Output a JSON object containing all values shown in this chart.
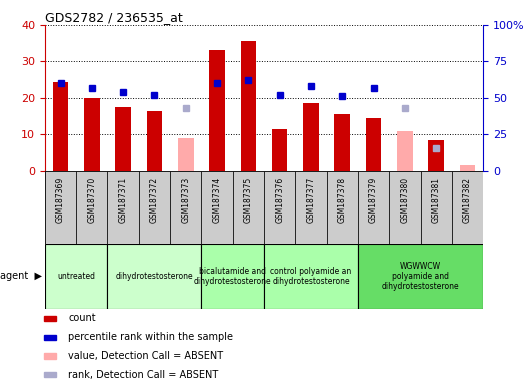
{
  "title": "GDS2782 / 236535_at",
  "samples": [
    "GSM187369",
    "GSM187370",
    "GSM187371",
    "GSM187372",
    "GSM187373",
    "GSM187374",
    "GSM187375",
    "GSM187376",
    "GSM187377",
    "GSM187378",
    "GSM187379",
    "GSM187380",
    "GSM187381",
    "GSM187382"
  ],
  "count_values": [
    24.5,
    20.0,
    17.5,
    16.5,
    null,
    33.0,
    35.5,
    11.5,
    18.5,
    15.5,
    14.5,
    null,
    8.5,
    null
  ],
  "absent_value": [
    null,
    null,
    null,
    null,
    9.0,
    null,
    null,
    null,
    null,
    null,
    null,
    11.0,
    null,
    1.5
  ],
  "rank_values": [
    60,
    57,
    54,
    52,
    null,
    60,
    62,
    52,
    58,
    51,
    57,
    null,
    null,
    null
  ],
  "absent_rank": [
    null,
    null,
    null,
    null,
    43,
    null,
    null,
    null,
    null,
    null,
    null,
    43,
    16,
    null
  ],
  "ylim_left": [
    0,
    40
  ],
  "ylim_right": [
    0,
    100
  ],
  "yticks_left": [
    0,
    10,
    20,
    30,
    40
  ],
  "ytick_labels_left": [
    "0",
    "10",
    "20",
    "30",
    "40"
  ],
  "yticks_right": [
    0,
    25,
    50,
    75,
    100
  ],
  "ytick_labels_right": [
    "0",
    "25",
    "50",
    "75",
    "100%"
  ],
  "agent_groups": [
    {
      "label": "untreated",
      "start": 0,
      "end": 2,
      "color": "#ccffcc"
    },
    {
      "label": "dihydrotestosterone",
      "start": 2,
      "end": 5,
      "color": "#ccffcc"
    },
    {
      "label": "bicalutamide and\ndihydrotestosterone",
      "start": 5,
      "end": 7,
      "color": "#aaffaa"
    },
    {
      "label": "control polyamide an\ndihydrotestosterone",
      "start": 7,
      "end": 10,
      "color": "#aaffaa"
    },
    {
      "label": "WGWWCW\npolyamide and\ndihydrotestosterone",
      "start": 10,
      "end": 14,
      "color": "#66dd66"
    }
  ],
  "bar_color_red": "#cc0000",
  "bar_color_pink": "#ffaaaa",
  "dot_color_blue": "#0000cc",
  "dot_color_light_blue": "#aaaacc",
  "left_axis_color": "#cc0000",
  "right_axis_color": "#0000cc",
  "sample_bg_color": "#cccccc",
  "legend_items": [
    {
      "label": "count",
      "color": "#cc0000"
    },
    {
      "label": "percentile rank within the sample",
      "color": "#0000cc"
    },
    {
      "label": "value, Detection Call = ABSENT",
      "color": "#ffaaaa"
    },
    {
      "label": "rank, Detection Call = ABSENT",
      "color": "#aaaacc"
    }
  ]
}
